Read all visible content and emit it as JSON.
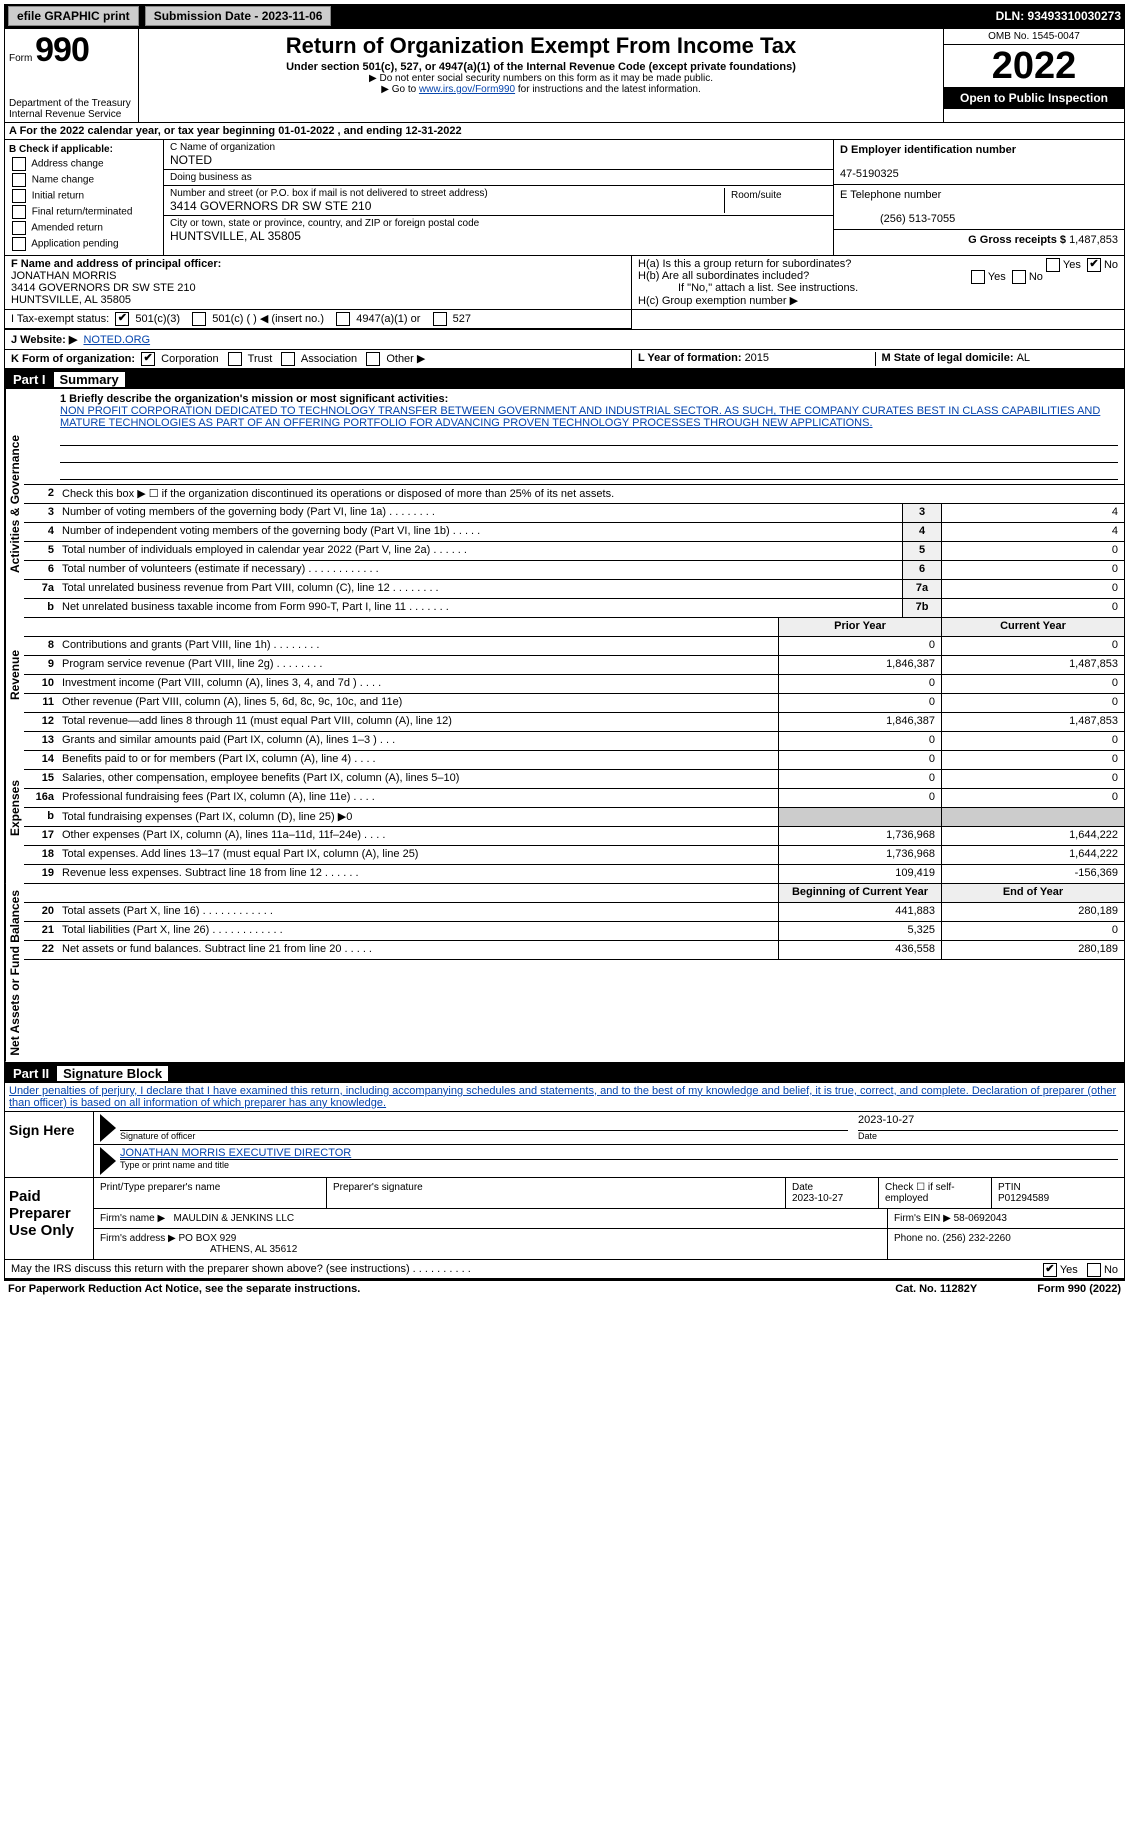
{
  "topbar": {
    "efile": "efile GRAPHIC print",
    "submission_label": "Submission Date - 2023-11-06",
    "dln": "DLN: 93493310030273"
  },
  "header": {
    "form_label": "Form",
    "form_num": "990",
    "dept": "Department of the Treasury\nInternal Revenue Service",
    "title": "Return of Organization Exempt From Income Tax",
    "subtitle": "Under section 501(c), 527, or 4947(a)(1) of the Internal Revenue Code (except private foundations)",
    "note1": "▶ Do not enter social security numbers on this form as it may be made public.",
    "note2_pre": "▶ Go to ",
    "note2_link": "www.irs.gov/Form990",
    "note2_post": " for instructions and the latest information.",
    "omb": "OMB No. 1545-0047",
    "year": "2022",
    "open": "Open to Public Inspection"
  },
  "row_a": {
    "text": "A For the 2022 calendar year, or tax year beginning 01-01-2022     , and ending 12-31-2022"
  },
  "col_b": {
    "label": "B Check if applicable:",
    "items": [
      "Address change",
      "Name change",
      "Initial return",
      "Final return/terminated",
      "Amended return",
      "Application pending"
    ]
  },
  "col_c": {
    "name_label": "C Name of organization",
    "name": "NOTED",
    "dba_label": "Doing business as",
    "dba": "",
    "street_label": "Number and street (or P.O. box if mail is not delivered to street address)",
    "room_label": "Room/suite",
    "street": "3414 GOVERNORS DR SW STE 210",
    "city_label": "City or town, state or province, country, and ZIP or foreign postal code",
    "city": "HUNTSVILLE, AL  35805"
  },
  "col_d": {
    "ein_label": "D Employer identification number",
    "ein": "47-5190325",
    "phone_label": "E Telephone number",
    "phone": "(256) 513-7055",
    "gross_label": "G Gross receipts $ ",
    "gross": "1,487,853"
  },
  "row_f": {
    "label": "F Name and address of principal officer:",
    "name": "JONATHAN MORRIS",
    "addr1": "3414 GOVERNORS DR SW STE 210",
    "addr2": "HUNTSVILLE, AL  35805"
  },
  "row_h": {
    "ha_label": "H(a)  Is this a group return for subordinates?",
    "ha_yes": "Yes",
    "ha_no": "No",
    "hb_label": "H(b)  Are all subordinates included?",
    "hb_yes": "Yes",
    "hb_no": "No",
    "hb_note": "If \"No,\" attach a list. See instructions.",
    "hc_label": "H(c)  Group exemption number ▶"
  },
  "row_i": {
    "label": "I   Tax-exempt status:",
    "opt1": "501(c)(3)",
    "opt2": "501(c) (   ) ◀ (insert no.)",
    "opt3": "4947(a)(1) or",
    "opt4": "527"
  },
  "row_j": {
    "label": "J   Website: ▶",
    "val": "NOTED.ORG"
  },
  "row_k": {
    "label": "K Form of organization:",
    "opts": [
      "Corporation",
      "Trust",
      "Association",
      "Other ▶"
    ]
  },
  "row_l": {
    "l_label": "L Year of formation: ",
    "l_val": "2015",
    "m_label": "M State of legal domicile: ",
    "m_val": "AL"
  },
  "part1": {
    "hdr": "Part I",
    "sub": "Summary"
  },
  "mission": {
    "label": "1  Briefly describe the organization's mission or most significant activities:",
    "text": "NON PROFIT CORPORATION DEDICATED TO TECHNOLOGY TRANSFER BETWEEN GOVERNMENT AND INDUSTRIAL SECTOR. AS SUCH, THE COMPANY CURATES BEST IN CLASS CAPABILITIES AND MATURE TECHNOLOGIES AS PART OF AN OFFERING PORTFOLIO FOR ADVANCING PROVEN TECHNOLOGY PROCESSES THROUGH NEW APPLICATIONS."
  },
  "gov_rows": [
    {
      "n": "2",
      "d": "Check this box ▶ ☐ if the organization discontinued its operations or disposed of more than 25% of its net assets.",
      "box": "",
      "v": ""
    },
    {
      "n": "3",
      "d": "Number of voting members of the governing body (Part VI, line 1a)  .    .    .    .    .    .    .    .",
      "box": "3",
      "v": "4"
    },
    {
      "n": "4",
      "d": "Number of independent voting members of the governing body (Part VI, line 1b)  .    .    .    .    .",
      "box": "4",
      "v": "4"
    },
    {
      "n": "5",
      "d": "Total number of individuals employed in calendar year 2022 (Part V, line 2a)  .    .    .    .    .    .",
      "box": "5",
      "v": "0"
    },
    {
      "n": "6",
      "d": "Total number of volunteers (estimate if necessary)  .    .    .    .    .    .    .    .    .    .    .    .",
      "box": "6",
      "v": "0"
    },
    {
      "n": "7a",
      "d": "Total unrelated business revenue from Part VIII, column (C), line 12  .    .    .    .    .    .    .    .",
      "box": "7a",
      "v": "0"
    },
    {
      "n": "b",
      "d": "Net unrelated business taxable income from Form 990-T, Part I, line 11  .    .    .    .    .    .    .",
      "box": "7b",
      "v": "0"
    }
  ],
  "year_hdr": {
    "prior": "Prior Year",
    "current": "Current Year"
  },
  "rev_rows": [
    {
      "n": "8",
      "d": "Contributions and grants (Part VIII, line 1h)  .    .    .    .    .    .    .    .",
      "p": "0",
      "c": "0"
    },
    {
      "n": "9",
      "d": "Program service revenue (Part VIII, line 2g)  .    .    .    .    .    .    .    .",
      "p": "1,846,387",
      "c": "1,487,853"
    },
    {
      "n": "10",
      "d": "Investment income (Part VIII, column (A), lines 3, 4, and 7d )  .    .    .    .",
      "p": "0",
      "c": "0"
    },
    {
      "n": "11",
      "d": "Other revenue (Part VIII, column (A), lines 5, 6d, 8c, 9c, 10c, and 11e)",
      "p": "0",
      "c": "0"
    },
    {
      "n": "12",
      "d": "Total revenue—add lines 8 through 11 (must equal Part VIII, column (A), line 12)",
      "p": "1,846,387",
      "c": "1,487,853"
    }
  ],
  "exp_rows": [
    {
      "n": "13",
      "d": "Grants and similar amounts paid (Part IX, column (A), lines 1–3 )  .    .    .",
      "p": "0",
      "c": "0"
    },
    {
      "n": "14",
      "d": "Benefits paid to or for members (Part IX, column (A), line 4)  .    .    .    .",
      "p": "0",
      "c": "0"
    },
    {
      "n": "15",
      "d": "Salaries, other compensation, employee benefits (Part IX, column (A), lines 5–10)",
      "p": "0",
      "c": "0"
    },
    {
      "n": "16a",
      "d": "Professional fundraising fees (Part IX, column (A), line 11e)  .    .    .    .",
      "p": "0",
      "c": "0"
    },
    {
      "n": "b",
      "d": "Total fundraising expenses (Part IX, column (D), line 25) ▶0",
      "p": "",
      "c": ""
    },
    {
      "n": "17",
      "d": "Other expenses (Part IX, column (A), lines 11a–11d, 11f–24e)  .    .    .    .",
      "p": "1,736,968",
      "c": "1,644,222"
    },
    {
      "n": "18",
      "d": "Total expenses. Add lines 13–17 (must equal Part IX, column (A), line 25)",
      "p": "1,736,968",
      "c": "1,644,222"
    },
    {
      "n": "19",
      "d": "Revenue less expenses. Subtract line 18 from line 12  .    .    .    .    .    .",
      "p": "109,419",
      "c": "-156,369"
    }
  ],
  "net_hdr": {
    "prior": "Beginning of Current Year",
    "current": "End of Year"
  },
  "net_rows": [
    {
      "n": "20",
      "d": "Total assets (Part X, line 16)  .    .    .    .    .    .    .    .    .    .    .    .",
      "p": "441,883",
      "c": "280,189"
    },
    {
      "n": "21",
      "d": "Total liabilities (Part X, line 26)  .    .    .    .    .    .    .    .    .    .    .    .",
      "p": "5,325",
      "c": "0"
    },
    {
      "n": "22",
      "d": "Net assets or fund balances. Subtract line 21 from line 20  .    .    .    .    .",
      "p": "436,558",
      "c": "280,189"
    }
  ],
  "part2": {
    "hdr": "Part II",
    "sub": "Signature Block"
  },
  "penalty": "Under penalties of perjury, I declare that I have examined this return, including accompanying schedules and statements, and to the best of my knowledge and belief, it is true, correct, and complete. Declaration of preparer (other than officer) is based on all information of which preparer has any knowledge.",
  "sign": {
    "label": "Sign Here",
    "sig_label": "Signature of officer",
    "date_label": "Date",
    "date": "2023-10-27",
    "name": "JONATHAN MORRIS EXECUTIVE DIRECTOR",
    "name_label": "Type or print name and title"
  },
  "prep": {
    "label": "Paid Preparer Use Only",
    "r1": {
      "c1_label": "Print/Type preparer's name",
      "c1": "",
      "c2_label": "Preparer's signature",
      "c2": "",
      "c3_label": "Date",
      "c3": "2023-10-27",
      "c4_label": "Check ☐ if self-employed",
      "c5_label": "PTIN",
      "c5": "P01294589"
    },
    "r2": {
      "firm_label": "Firm's name    ▶",
      "firm": "MAULDIN & JENKINS LLC",
      "ein_label": "Firm's EIN ▶",
      "ein": "58-0692043"
    },
    "r3": {
      "addr_label": "Firm's address ▶",
      "addr1": "PO BOX 929",
      "addr2": "ATHENS, AL  35612",
      "phone_label": "Phone no. ",
      "phone": "(256) 232-2260"
    }
  },
  "may_discuss": {
    "text": "May the IRS discuss this return with the preparer shown above? (see instructions)  .    .    .    .    .    .    .    .    .    .",
    "yes": "Yes",
    "no": "No"
  },
  "footer": {
    "left": "For Paperwork Reduction Act Notice, see the separate instructions.",
    "mid": "Cat. No. 11282Y",
    "right": "Form 990 (2022)"
  },
  "vert": {
    "gov": "Activities & Governance",
    "rev": "Revenue",
    "exp": "Expenses",
    "net": "Net Assets or Fund Balances"
  }
}
